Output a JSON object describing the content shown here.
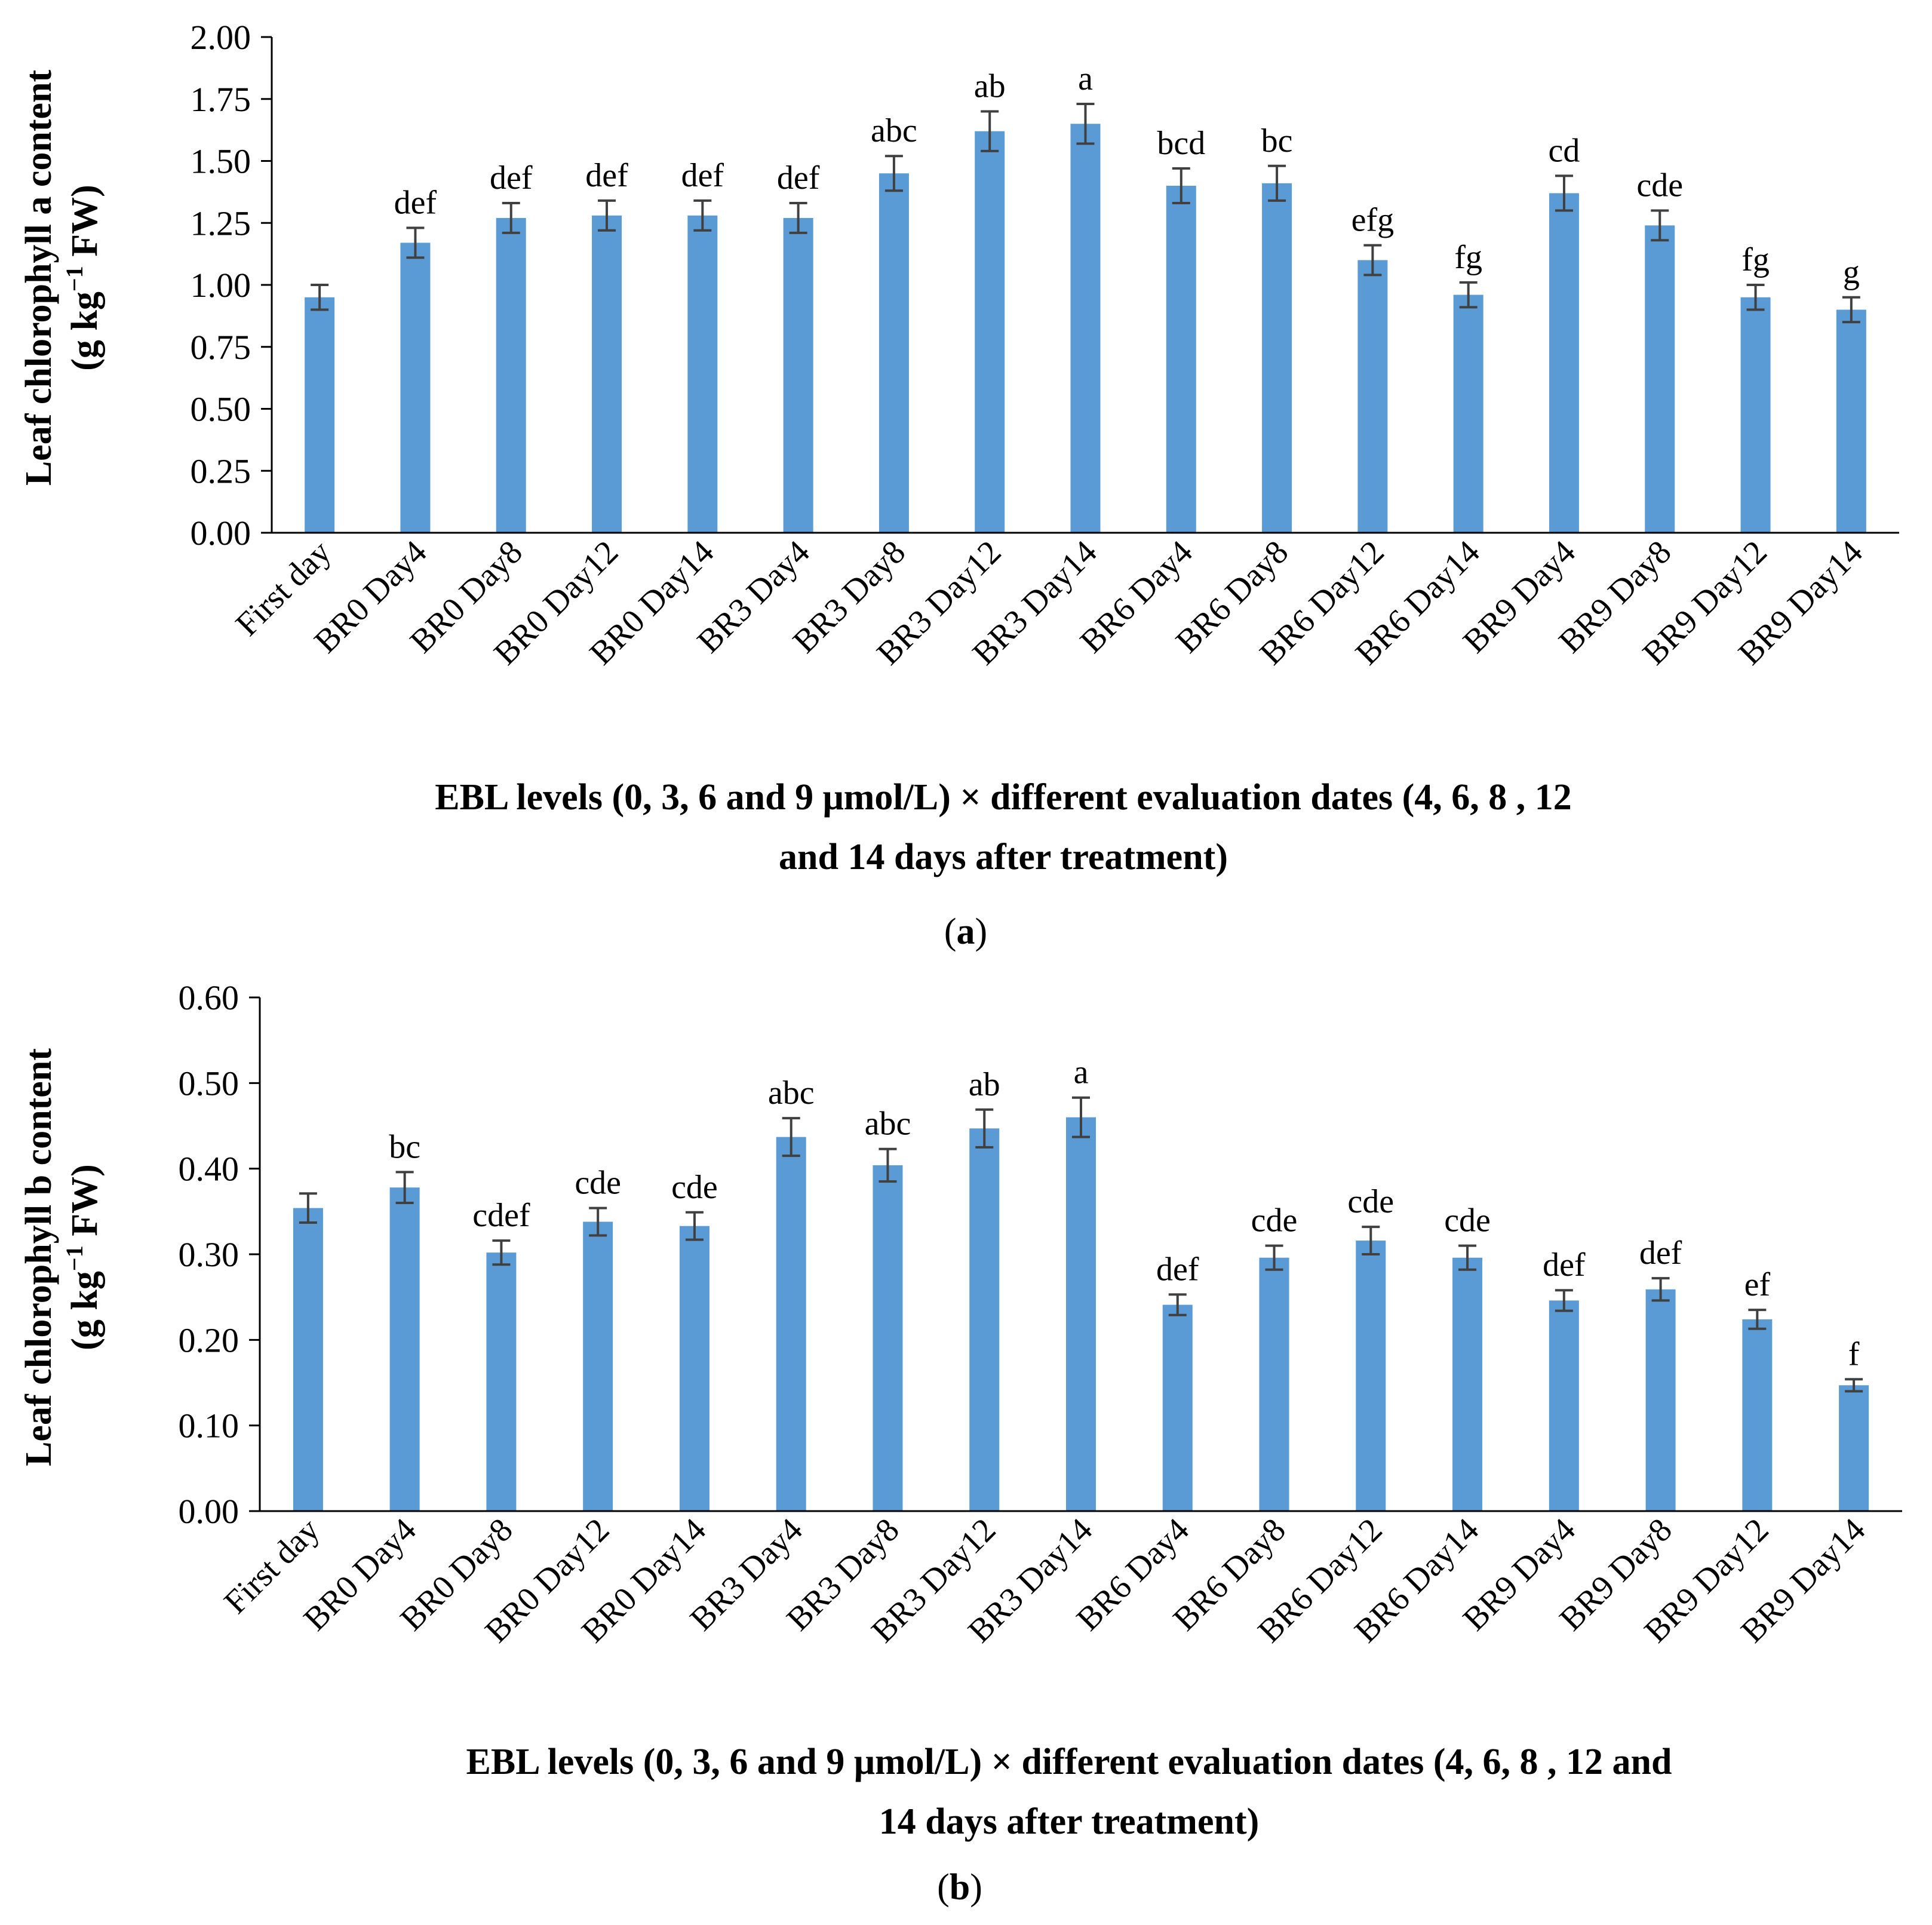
{
  "chart_data": [
    {
      "type": "bar",
      "panel": "a",
      "panel_label": "a",
      "ylabel_line1": "Leaf chlorophyll a content",
      "ylabel_unit_prefix": "(g kg",
      "ylabel_unit_sup": "−1",
      "ylabel_unit_suffix": " FW)",
      "xlabel_line1": "EBL levels (0, 3, 6 and 9 μmol/L) × different evaluation dates (4, 6, 8 , 12",
      "xlabel_line2": "and 14 days after treatment)",
      "ylim": [
        0,
        2.0
      ],
      "yticks": [
        "0.00",
        "0.25",
        "0.50",
        "0.75",
        "1.00",
        "1.25",
        "1.50",
        "1.75",
        "2.00"
      ],
      "ytick_values": [
        0,
        0.25,
        0.5,
        0.75,
        1.0,
        1.25,
        1.5,
        1.75,
        2.0
      ],
      "categories": [
        "First day",
        "BR0 Day4",
        "BR0 Day8",
        "BR0 Day12",
        "BR0 Day14",
        "BR3 Day4",
        "BR3 Day8",
        "BR3 Day12",
        "BR3 Day14",
        "BR6 Day4",
        "BR6 Day8",
        "BR6 Day12",
        "BR6 Day14",
        "BR9 Day4",
        "BR9 Day8",
        "BR9 Day12",
        "BR9 Day14"
      ],
      "values": [
        0.95,
        1.17,
        1.27,
        1.28,
        1.28,
        1.27,
        1.45,
        1.62,
        1.65,
        1.4,
        1.41,
        1.1,
        0.96,
        1.37,
        1.24,
        0.95,
        0.9
      ],
      "errors": [
        0.05,
        0.06,
        0.06,
        0.06,
        0.06,
        0.06,
        0.07,
        0.08,
        0.08,
        0.07,
        0.07,
        0.06,
        0.05,
        0.07,
        0.06,
        0.05,
        0.05
      ],
      "significance": [
        "",
        "def",
        "def",
        "def",
        "def",
        "def",
        "abc",
        "ab",
        "a",
        "bcd",
        "bc",
        "efg",
        "fg",
        "cd",
        "cde",
        "fg",
        "g"
      ],
      "bar_color": "#5B9BD5",
      "error_color": "#404040"
    },
    {
      "type": "bar",
      "panel": "b",
      "panel_label": "b",
      "ylabel_line1": "Leaf chlorophyll b content",
      "ylabel_unit_prefix": "(g kg",
      "ylabel_unit_sup": "−1",
      "ylabel_unit_suffix": " FW)",
      "xlabel_line1": "EBL levels (0, 3, 6 and 9 μmol/L) × different evaluation dates (4, 6, 8 , 12 and",
      "xlabel_line2": "14 days after treatment)",
      "ylim": [
        0,
        0.6
      ],
      "yticks": [
        "0.00",
        "0.10",
        "0.20",
        "0.30",
        "0.40",
        "0.50",
        "0.60"
      ],
      "ytick_values": [
        0,
        0.1,
        0.2,
        0.3,
        0.4,
        0.5,
        0.6
      ],
      "categories": [
        "First day",
        "BR0 Day4",
        "BR0 Day8",
        "BR0 Day12",
        "BR0 Day14",
        "BR3 Day4",
        "BR3 Day8",
        "BR3 Day12",
        "BR3 Day14",
        "BR6 Day4",
        "BR6 Day8",
        "BR6 Day12",
        "BR6 Day14",
        "BR9 Day4",
        "BR9 Day8",
        "BR9 Day12",
        "BR9 Day14"
      ],
      "values": [
        0.354,
        0.378,
        0.302,
        0.338,
        0.333,
        0.437,
        0.404,
        0.447,
        0.46,
        0.241,
        0.296,
        0.316,
        0.296,
        0.246,
        0.259,
        0.224,
        0.147
      ],
      "errors": [
        0.017,
        0.018,
        0.014,
        0.016,
        0.016,
        0.022,
        0.019,
        0.022,
        0.023,
        0.012,
        0.014,
        0.016,
        0.014,
        0.012,
        0.013,
        0.011,
        0.007
      ],
      "significance": [
        "",
        "bc",
        "cdef",
        "cde",
        "cde",
        "abc",
        "abc",
        "ab",
        "a",
        "def",
        "cde",
        "cde",
        "cde",
        "def",
        "def",
        "ef",
        "f"
      ],
      "bar_color": "#5B9BD5",
      "error_color": "#404040"
    }
  ]
}
